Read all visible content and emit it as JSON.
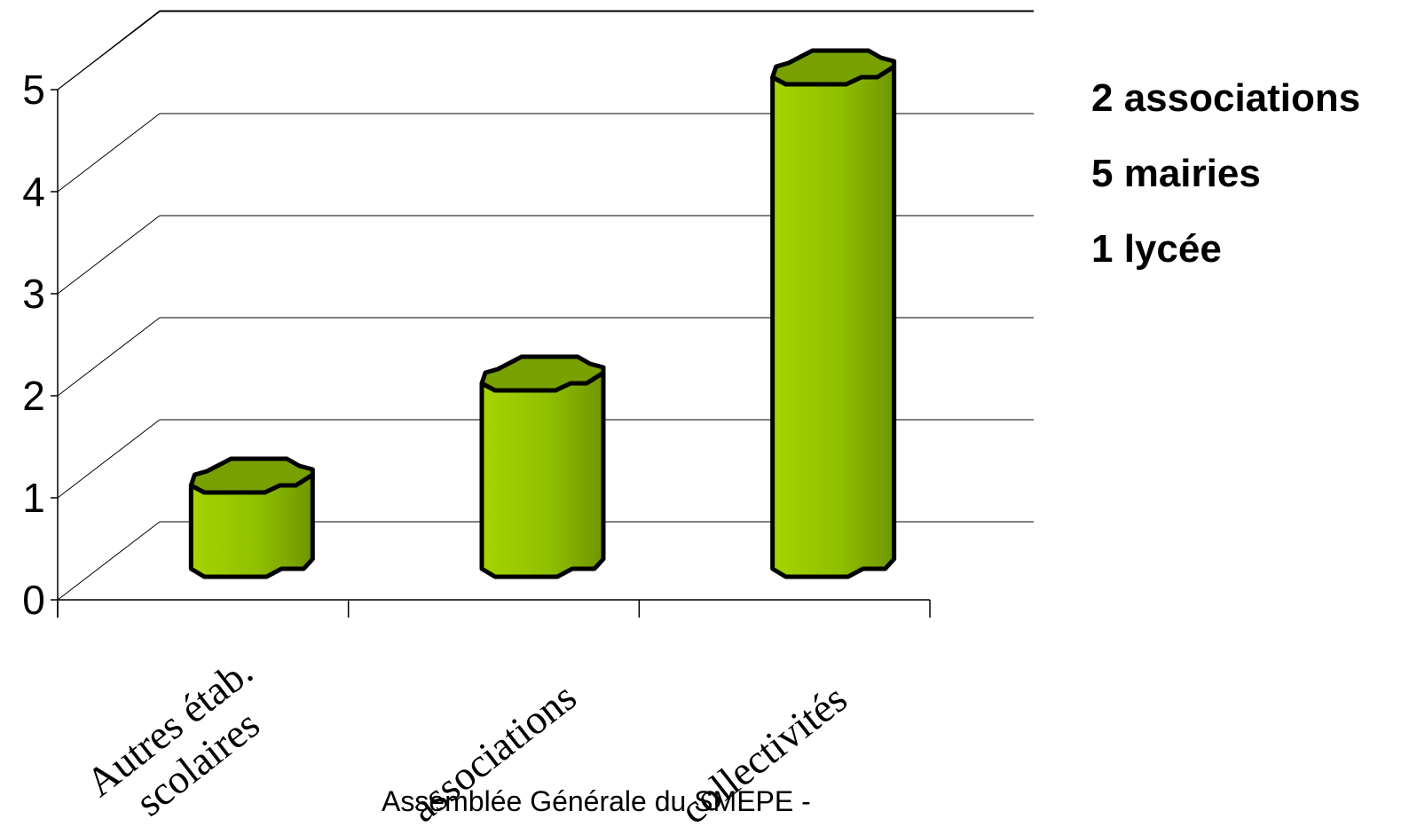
{
  "chart_data": {
    "type": "bar",
    "categories": [
      "Autres étab. scolaires",
      "associations",
      "collectivités"
    ],
    "values": [
      1,
      2,
      5
    ],
    "ylim": [
      0,
      5
    ],
    "yticks": [
      "0",
      "1",
      "2",
      "3",
      "4",
      "5"
    ],
    "grid": true,
    "bar_color": "#8bbb00"
  },
  "notes": [
    "2 associations",
    "5 mairies",
    "1 lycée"
  ],
  "footer": "Assemblée Générale du SMEPE -"
}
